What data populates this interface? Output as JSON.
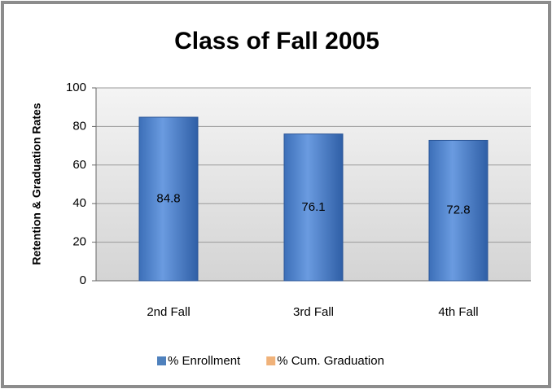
{
  "chart_data": {
    "type": "bar",
    "title": "Class of Fall 2005",
    "y_label": "Retention & Graduation  Rates",
    "categories": [
      "2nd Fall",
      "3rd Fall",
      "4th Fall"
    ],
    "series": [
      {
        "name": "% Enrollment",
        "color": "#4f81bd",
        "values": [
          84.8,
          76.1,
          72.8
        ]
      },
      {
        "name": "% Cum. Graduation",
        "color": "#f0b27a",
        "values": [
          null,
          null,
          null
        ]
      }
    ],
    "ylim": [
      0,
      100
    ],
    "yticks": [
      0,
      20,
      40,
      60,
      80,
      100
    ],
    "grid": true,
    "legend": "bottom"
  }
}
